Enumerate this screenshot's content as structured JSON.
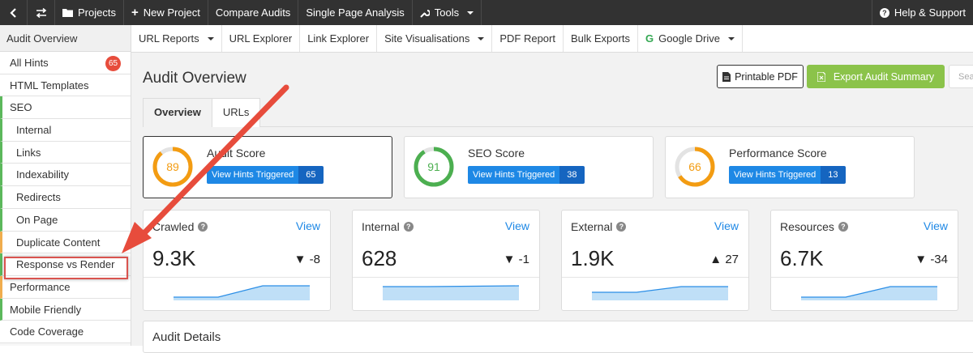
{
  "topbar": {
    "back_icon": "chevron-left-icon",
    "swap_icon": "swap-arrows-icon",
    "projects_label": "Projects",
    "new_project_label": "New Project",
    "compare_audits_label": "Compare Audits",
    "single_page_label": "Single Page Analysis",
    "tools_label": "Tools",
    "help_label": "Help & Support"
  },
  "sidebar": {
    "title": "Audit Overview",
    "items": [
      {
        "label": "All Hints",
        "badge": "65"
      },
      {
        "label": "HTML Templates"
      },
      {
        "label": "SEO"
      },
      {
        "label": "Internal"
      },
      {
        "label": "Links"
      },
      {
        "label": "Indexability"
      },
      {
        "label": "Redirects"
      },
      {
        "label": "On Page"
      },
      {
        "label": "Duplicate Content"
      },
      {
        "label": "Response vs Render"
      },
      {
        "label": "Performance"
      },
      {
        "label": "Mobile Friendly"
      },
      {
        "label": "Code Coverage"
      }
    ]
  },
  "subnav": {
    "items": [
      "URL Reports",
      "URL Explorer",
      "Link Explorer",
      "Site Visualisations",
      "PDF Report",
      "Bulk Exports",
      "Google Drive"
    ]
  },
  "main": {
    "title": "Audit Overview",
    "printable_pdf": "Printable PDF",
    "export_summary": "Export Audit Summary",
    "search_placeholder": "Sear",
    "tabs": [
      "Overview",
      "URLs"
    ],
    "scores": [
      {
        "title": "Audit Score",
        "value": "89",
        "percent": 89,
        "color": "#f39c12",
        "hints_label": "View Hints Triggered",
        "hints": "65"
      },
      {
        "title": "SEO Score",
        "value": "91",
        "percent": 91,
        "color": "#4caf50",
        "hints_label": "View Hints Triggered",
        "hints": "38"
      },
      {
        "title": "Performance Score",
        "value": "66",
        "percent": 66,
        "color": "#f39c12",
        "hints_label": "View Hints Triggered",
        "hints": "13"
      }
    ],
    "metrics": [
      {
        "title": "Crawled",
        "view": "View",
        "value": "9.3K",
        "delta_icon": "▼",
        "delta": "-8"
      },
      {
        "title": "Internal",
        "view": "View",
        "value": "628",
        "delta_icon": "▼",
        "delta": "-1"
      },
      {
        "title": "External",
        "view": "View",
        "value": "1.9K",
        "delta_icon": "▲",
        "delta": "27"
      },
      {
        "title": "Resources",
        "view": "View",
        "value": "6.7K",
        "delta_icon": "▼",
        "delta": "-34"
      }
    ],
    "details_title": "Audit Details"
  },
  "colors": {
    "topbar": "#323232",
    "accent_blue": "#1e88e5",
    "export_green": "#8bc34a",
    "badge_red": "#e74c3c",
    "annotation_red": "#e74c3c"
  }
}
